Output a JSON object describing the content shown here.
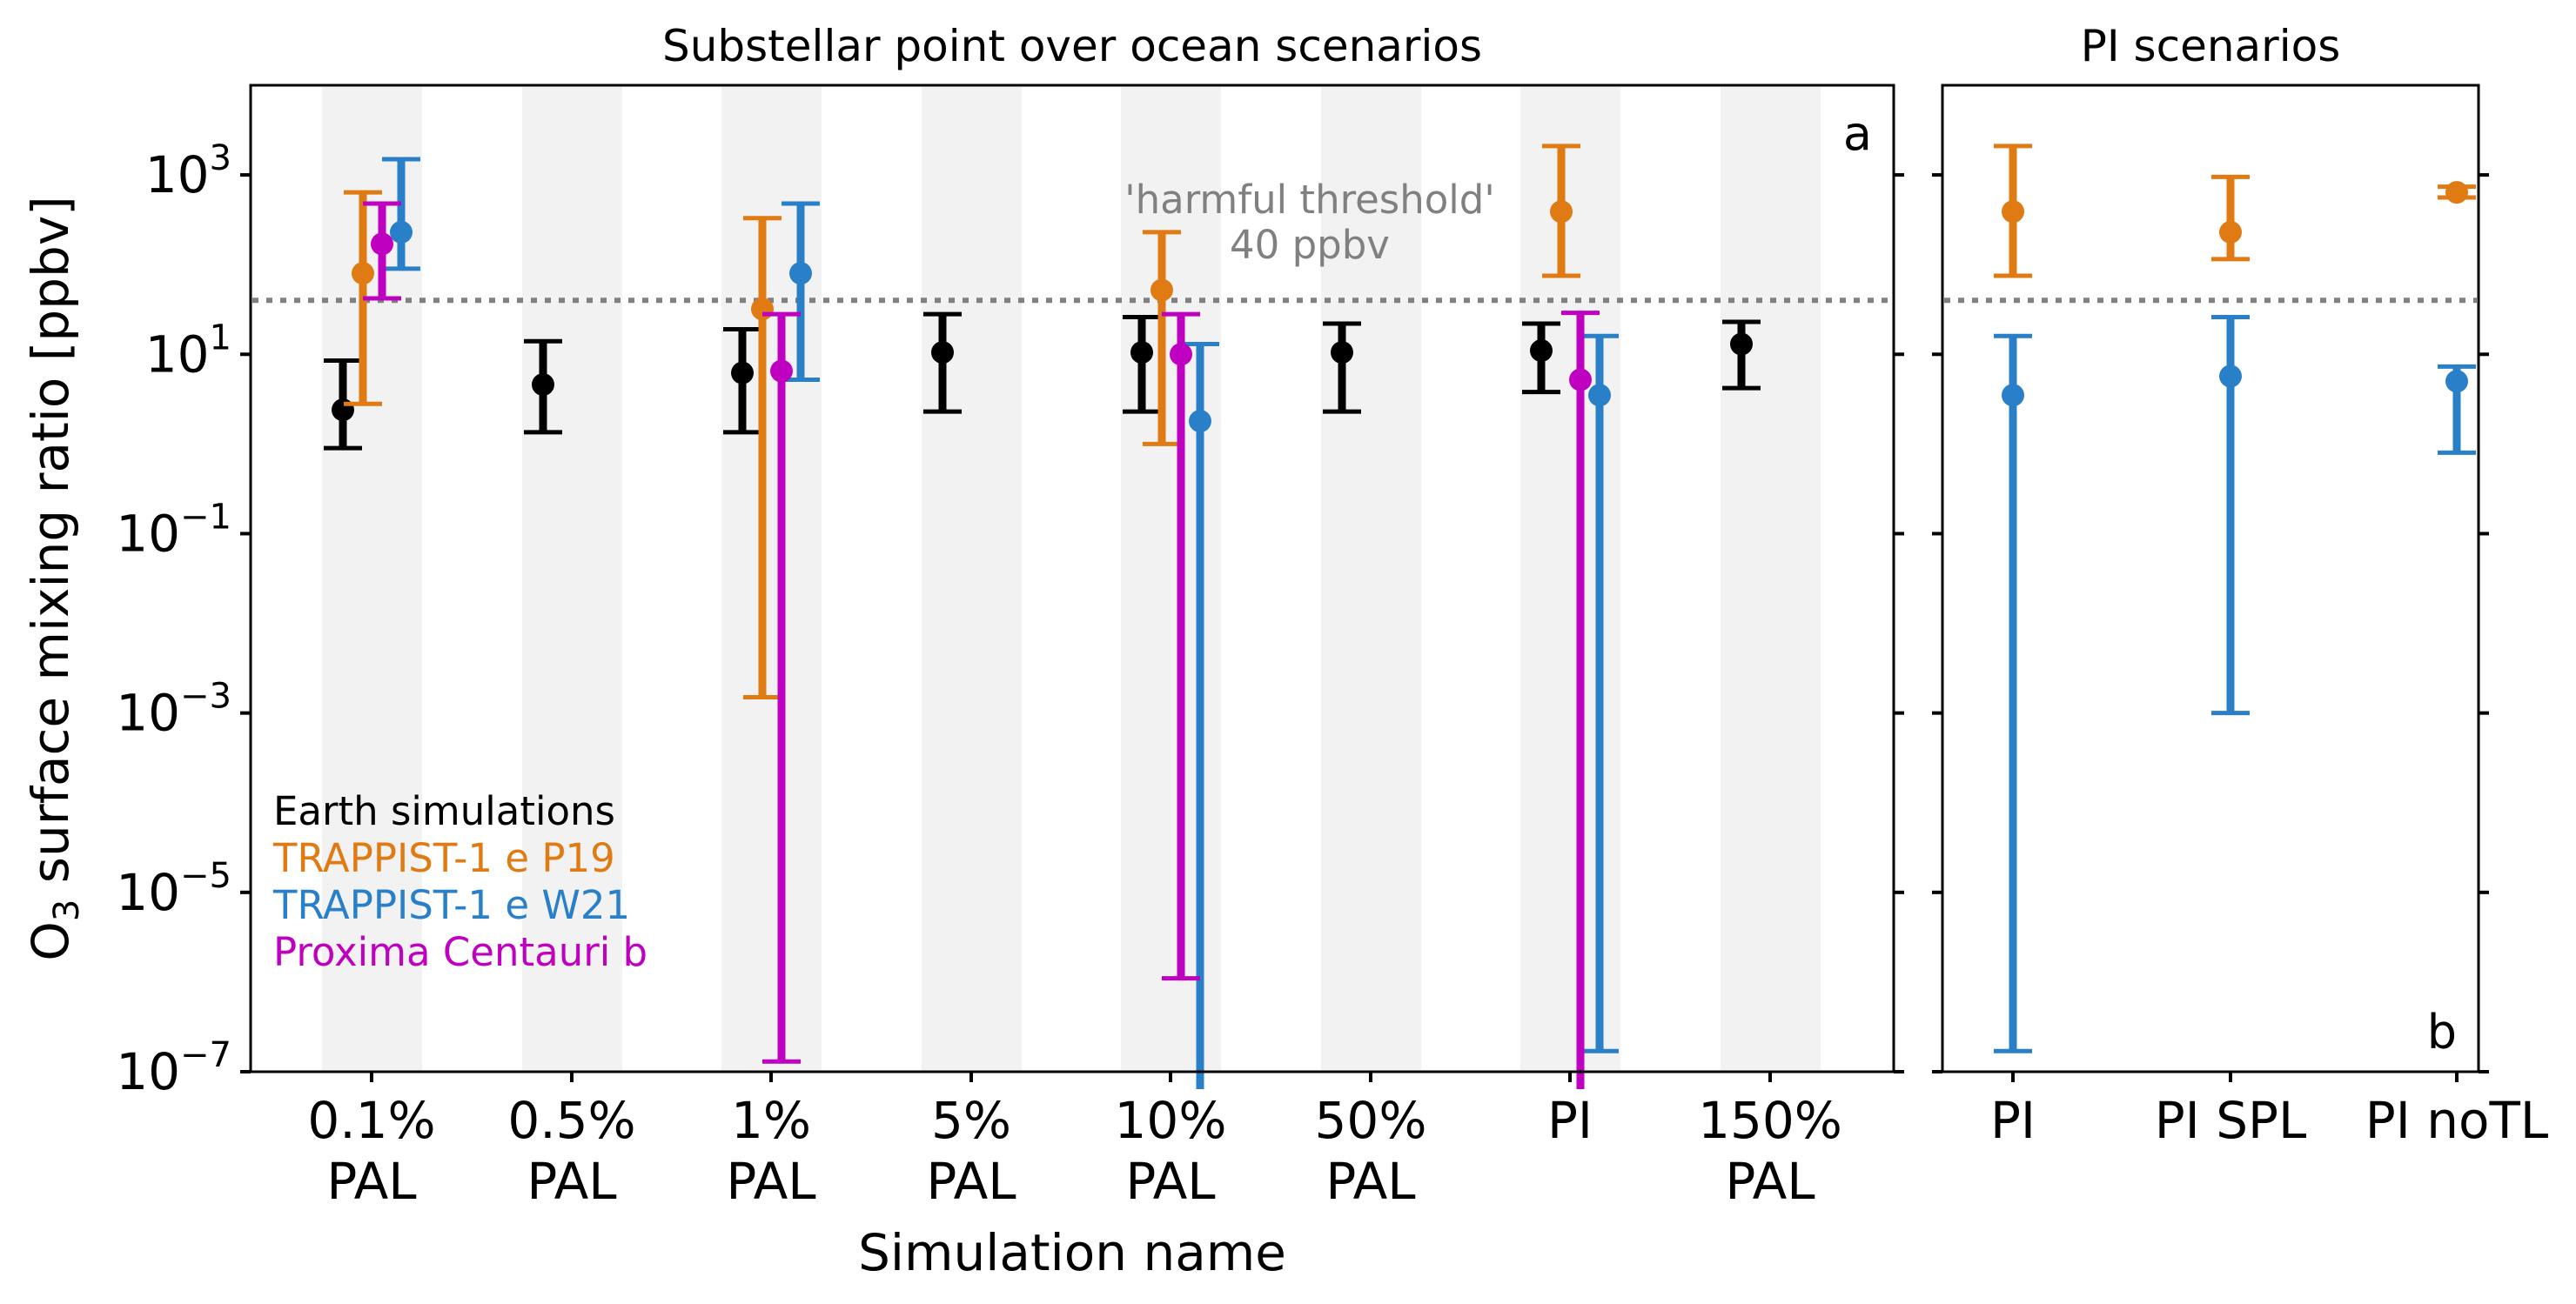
{
  "figure": {
    "ylabel_main": "O",
    "ylabel_sub": "3",
    "ylabel_rest": " surface mixing ratio [ppbv]"
  },
  "colors": {
    "Earth simulations": "#000000",
    "TRAPPIST-1 e P19": "#e07b14",
    "TRAPPIST-1 e W21": "#2a80c8",
    "Proxima Centauri b": "#c000c0",
    "threshold": "#808080",
    "band": "#f2f2f2"
  },
  "chart_data": [
    {
      "type": "scatter",
      "title": "Substellar point over ocean scenarios",
      "panel_label": "a",
      "xlabel": "Simulation name",
      "ylabel": "O3 surface mixing ratio [ppbv]",
      "yscale": "log",
      "ylim": [
        1e-07,
        10000
      ],
      "yticks": [
        {
          "value": 1000,
          "base": "10",
          "exp": "3"
        },
        {
          "value": 10,
          "base": "10",
          "exp": "1"
        },
        {
          "value": 0.1,
          "base": "10",
          "exp": "−1"
        },
        {
          "value": 0.001,
          "base": "10",
          "exp": "−3"
        },
        {
          "value": 1e-05,
          "base": "10",
          "exp": "−5"
        },
        {
          "value": 1e-07,
          "base": "10",
          "exp": "−7"
        }
      ],
      "categories": [
        {
          "line1": "0.1%",
          "line2": "PAL"
        },
        {
          "line1": "0.5%",
          "line2": "PAL"
        },
        {
          "line1": "1%",
          "line2": "PAL"
        },
        {
          "line1": "5%",
          "line2": "PAL"
        },
        {
          "line1": "10%",
          "line2": "PAL"
        },
        {
          "line1": "50%",
          "line2": "PAL"
        },
        {
          "line1": "PI",
          "line2": ""
        },
        {
          "line1": "150%",
          "line2": "PAL"
        }
      ],
      "grid": false,
      "shaded_bands": true,
      "threshold": {
        "value": 40,
        "label_line1": "'harmful threshold'",
        "label_line2": "40 ppbv"
      },
      "legend": {
        "placement": "lower-left",
        "entries": [
          "Earth simulations",
          "TRAPPIST-1 e P19",
          "TRAPPIST-1 e W21",
          "Proxima Centauri b"
        ]
      },
      "series": [
        {
          "name": "Earth simulations",
          "points": [
            {
              "category": 0,
              "y": 2.4,
              "low": 0.9,
              "high": 8.5
            },
            {
              "category": 1,
              "y": 4.6,
              "low": 1.35,
              "high": 14
            },
            {
              "category": 2,
              "y": 6.2,
              "low": 1.35,
              "high": 19
            },
            {
              "category": 3,
              "y": 10.5,
              "low": 2.3,
              "high": 28
            },
            {
              "category": 4,
              "y": 10.5,
              "low": 2.3,
              "high": 26
            },
            {
              "category": 5,
              "y": 10.5,
              "low": 2.3,
              "high": 22
            },
            {
              "category": 6,
              "y": 11,
              "low": 3.8,
              "high": 22
            },
            {
              "category": 7,
              "y": 13,
              "low": 4.2,
              "high": 23
            }
          ]
        },
        {
          "name": "TRAPPIST-1 e P19",
          "points": [
            {
              "category": 0,
              "y": 80,
              "low": 2.8,
              "high": 640
            },
            {
              "category": 2,
              "y": 32,
              "low": 0.0015,
              "high": 330
            },
            {
              "category": 4,
              "y": 52,
              "low": 1.0,
              "high": 230
            },
            {
              "category": 6,
              "y": 390,
              "low": 75,
              "high": 2100
            }
          ]
        },
        {
          "name": "TRAPPIST-1 e W21",
          "points": [
            {
              "category": 0,
              "y": 230,
              "low": 90,
              "high": 1500
            },
            {
              "category": 2,
              "y": 80,
              "low": 5.2,
              "high": 480
            },
            {
              "category": 4,
              "y": 1.8,
              "low": 1e-08,
              "high": 13
            },
            {
              "category": 6,
              "y": 3.5,
              "low": 1.7e-07,
              "high": 16
            }
          ]
        },
        {
          "name": "Proxima Centauri b",
          "points": [
            {
              "category": 0,
              "y": 170,
              "low": 42,
              "high": 480
            },
            {
              "category": 2,
              "y": 6.5,
              "low": 1.3e-07,
              "high": 28
            },
            {
              "category": 4,
              "y": 10,
              "low": 1.1e-06,
              "high": 28
            },
            {
              "category": 6,
              "y": 5.2,
              "low": 1e-08,
              "high": 29
            }
          ]
        }
      ]
    },
    {
      "type": "scatter",
      "title": "PI scenarios",
      "panel_label": "b",
      "yscale": "log",
      "ylim": [
        1e-07,
        10000
      ],
      "categories": [
        {
          "line1": "PI",
          "line2": ""
        },
        {
          "line1": "PI SPL",
          "line2": ""
        },
        {
          "line1": "PI noTL",
          "line2": ""
        }
      ],
      "grid": false,
      "threshold": {
        "value": 40
      },
      "series": [
        {
          "name": "TRAPPIST-1 e P19",
          "points": [
            {
              "category": 0,
              "y": 390,
              "low": 75,
              "high": 2100
            },
            {
              "category": 1,
              "y": 230,
              "low": 115,
              "high": 950
            },
            {
              "category": 2,
              "y": 640,
              "low": 560,
              "high": 740
            }
          ]
        },
        {
          "name": "TRAPPIST-1 e W21",
          "points": [
            {
              "category": 0,
              "y": 3.5,
              "low": 1.7e-07,
              "high": 16
            },
            {
              "category": 1,
              "y": 5.7,
              "low": 0.001,
              "high": 26
            },
            {
              "category": 2,
              "y": 5.0,
              "low": 0.8,
              "high": 7.3
            }
          ]
        }
      ]
    }
  ]
}
